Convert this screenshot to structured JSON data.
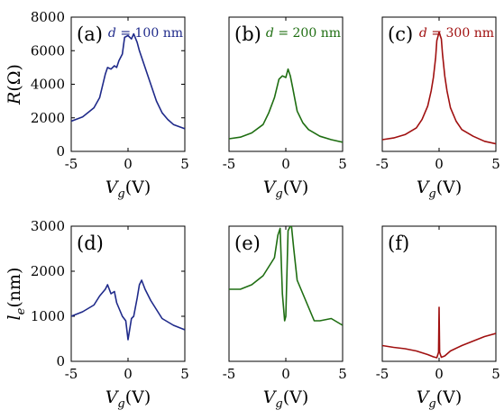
{
  "colors": {
    "blue": "#1f2a8a",
    "green": "#1f6e12",
    "red": "#a01010"
  },
  "axis_labels": {
    "top_y": "R(Ω)",
    "bottom_y": "l_e(nm)",
    "x": "V_g(V)"
  },
  "chart_data": [
    {
      "type": "line",
      "panel": "(a)",
      "annotation": "d = 100 nm",
      "color": "#1f2a8a",
      "xlabel": "V_g(V)",
      "ylabel": "R(Ω)",
      "xlim": [
        -5,
        5
      ],
      "ylim": [
        0,
        8000
      ],
      "xticks": [
        -5,
        0,
        5
      ],
      "yticks": [
        0,
        2000,
        4000,
        6000,
        8000
      ],
      "series": [
        {
          "x": [
            -5,
            -4,
            -3,
            -2.5,
            -2,
            -1.8,
            -1.5,
            -1.2,
            -1,
            -0.8,
            -0.5,
            -0.3,
            0,
            0.3,
            0.5,
            0.8,
            1,
            1.5,
            2,
            2.5,
            3,
            3.5,
            4,
            5
          ],
          "y": [
            1800,
            2050,
            2600,
            3200,
            4600,
            5000,
            4900,
            5100,
            5000,
            5400,
            5800,
            6800,
            6900,
            6700,
            7000,
            6500,
            6000,
            5000,
            4000,
            3000,
            2300,
            1900,
            1600,
            1350
          ]
        }
      ]
    },
    {
      "type": "line",
      "panel": "(b)",
      "annotation": "d = 200 nm",
      "color": "#1f6e12",
      "xlabel": "V_g(V)",
      "ylabel": "",
      "xlim": [
        -5,
        5
      ],
      "ylim": [
        0,
        8000
      ],
      "xticks": [
        -5,
        0,
        5
      ],
      "yticks": [],
      "series": [
        {
          "x": [
            -5,
            -4,
            -3,
            -2,
            -1.5,
            -1,
            -0.6,
            -0.3,
            0,
            0.2,
            0.4,
            0.6,
            0.8,
            1,
            1.5,
            2,
            3,
            4,
            5
          ],
          "y": [
            750,
            850,
            1100,
            1600,
            2300,
            3200,
            4300,
            4500,
            4400,
            4900,
            4500,
            3800,
            3100,
            2400,
            1700,
            1300,
            900,
            700,
            550
          ]
        }
      ]
    },
    {
      "type": "line",
      "panel": "(c)",
      "annotation": "d = 300 nm",
      "color": "#a01010",
      "xlabel": "V_g(V)",
      "ylabel": "",
      "xlim": [
        -5,
        5
      ],
      "ylim": [
        0,
        8000
      ],
      "xticks": [
        -5,
        0,
        5
      ],
      "yticks": [],
      "series": [
        {
          "x": [
            -5,
            -4,
            -3,
            -2,
            -1.5,
            -1,
            -0.7,
            -0.5,
            -0.3,
            -0.2,
            0,
            0.2,
            0.3,
            0.5,
            0.7,
            1,
            1.5,
            2,
            3,
            4,
            5
          ],
          "y": [
            700,
            800,
            1000,
            1400,
            1900,
            2700,
            3600,
            4400,
            5600,
            6600,
            7100,
            6700,
            5800,
            4500,
            3600,
            2600,
            1800,
            1300,
            900,
            600,
            450
          ]
        }
      ]
    },
    {
      "type": "line",
      "panel": "(d)",
      "annotation": "",
      "color": "#1f2a8a",
      "xlabel": "V_g(V)",
      "ylabel": "l_e(nm)",
      "xlim": [
        -5,
        5
      ],
      "ylim": [
        0,
        3000
      ],
      "xticks": [
        -5,
        0,
        5
      ],
      "yticks": [
        0,
        1000,
        2000,
        3000
      ],
      "series": [
        {
          "x": [
            -5,
            -4,
            -3,
            -2.5,
            -2,
            -1.8,
            -1.5,
            -1.2,
            -1,
            -0.5,
            -0.2,
            0,
            0.3,
            0.5,
            0.8,
            1,
            1.2,
            1.5,
            2,
            2.5,
            3,
            4,
            5
          ],
          "y": [
            1000,
            1100,
            1250,
            1450,
            1600,
            1700,
            1500,
            1550,
            1300,
            1000,
            900,
            480,
            950,
            1000,
            1400,
            1700,
            1800,
            1600,
            1350,
            1150,
            950,
            800,
            700
          ]
        }
      ]
    },
    {
      "type": "line",
      "panel": "(e)",
      "annotation": "",
      "color": "#1f6e12",
      "xlabel": "V_g(V)",
      "ylabel": "",
      "xlim": [
        -5,
        5
      ],
      "ylim": [
        0,
        3000
      ],
      "xticks": [
        -5,
        0,
        5
      ],
      "yticks": [],
      "series": [
        {
          "x": [
            -5,
            -4,
            -3,
            -2,
            -1.5,
            -1,
            -0.7,
            -0.5,
            -0.3,
            -0.1,
            0,
            0.2,
            0.4,
            0.5,
            0.7,
            1,
            1.5,
            2,
            2.5,
            3,
            4,
            5
          ],
          "y": [
            1600,
            1600,
            1700,
            1900,
            2100,
            2300,
            2800,
            2950,
            1500,
            900,
            1000,
            2900,
            3000,
            3000,
            2500,
            1800,
            1500,
            1200,
            900,
            900,
            950,
            800
          ]
        }
      ]
    },
    {
      "type": "line",
      "panel": "(f)",
      "annotation": "",
      "color": "#a01010",
      "xlabel": "V_g(V)",
      "ylabel": "",
      "xlim": [
        -5,
        5
      ],
      "ylim": [
        0,
        3000
      ],
      "xticks": [
        -5,
        0,
        5
      ],
      "yticks": [],
      "series": [
        {
          "x": [
            -5,
            -4,
            -3,
            -2,
            -1,
            -0.5,
            -0.2,
            -0.05,
            0,
            0.05,
            0.2,
            0.5,
            1,
            2,
            3,
            4,
            5
          ],
          "y": [
            350,
            310,
            280,
            230,
            150,
            100,
            80,
            200,
            1200,
            200,
            90,
            120,
            230,
            350,
            450,
            550,
            620
          ]
        }
      ]
    }
  ]
}
